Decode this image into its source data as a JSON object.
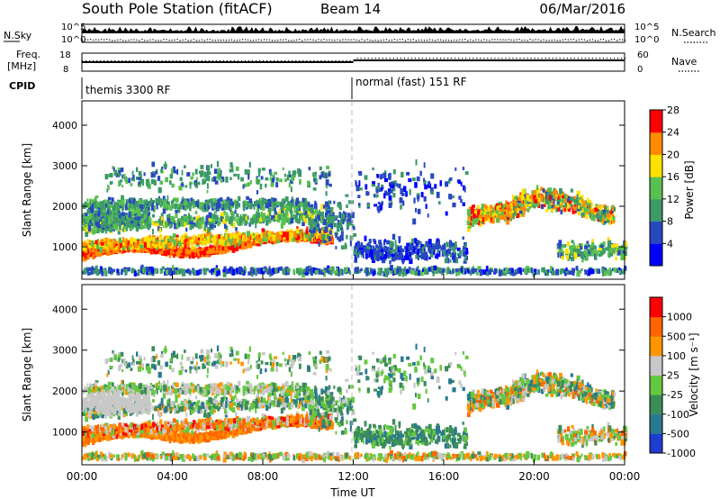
{
  "header": {
    "station": "South Pole Station (fitACF)",
    "beam": "Beam 14",
    "date": "06/Mar/2016"
  },
  "top_panels": {
    "nsky_label": "N.Sky",
    "nsky_ticks": [
      "10^5",
      "10^0"
    ],
    "nsearch_label": "N.Search",
    "nsearch_ticks": [
      "10^5",
      "10^0"
    ],
    "freq_label_1": "Freq.",
    "freq_label_2": "[MHz]",
    "freq_ticks": [
      "18",
      "8"
    ],
    "nave_label": "Nave",
    "nave_ticks": [
      "60",
      "0"
    ],
    "cpid_label": "CPID",
    "cpid_segments": [
      "themis 3300 RF",
      "normal (fast) 151 RF"
    ],
    "cpid_change_hour": 12.0
  },
  "chart_data": [
    {
      "type": "heatmap",
      "name": "power",
      "xlabel": "",
      "ylabel": "Slant Range [km]",
      "xlim": [
        0,
        24
      ],
      "ylim": [
        200,
        4600
      ],
      "yticks": [
        1000,
        2000,
        3000,
        4000
      ],
      "colorbar": {
        "label": "Power [dB]",
        "ticks": [
          "4",
          "8",
          "12",
          "16",
          "20",
          "24",
          "28"
        ],
        "colors": [
          "#0000ff",
          "#2848c0",
          "#3c9a68",
          "#58c050",
          "#ffe000",
          "#ff8c00",
          "#ff0000"
        ]
      }
    },
    {
      "type": "heatmap",
      "name": "velocity",
      "xlabel": "Time UT",
      "ylabel": "Slant Range [km]",
      "xlim": [
        0,
        24
      ],
      "ylim": [
        200,
        4600
      ],
      "yticks": [
        1000,
        2000,
        3000,
        4000
      ],
      "xticks": [
        "00:00",
        "04:00",
        "08:00",
        "12:00",
        "16:00",
        "20:00",
        "00:00"
      ],
      "colorbar": {
        "label": "Velocity [m s⁻¹]",
        "ticks": [
          "1000",
          "500",
          "100",
          "25",
          "-25",
          "-100",
          "-500",
          "-1000"
        ],
        "colors": [
          "#1e3cd2",
          "#2a7890",
          "#3c8c5a",
          "#64c840",
          "#c8c8c8",
          "#ff9600",
          "#ff6400",
          "#ff0000"
        ]
      }
    }
  ]
}
